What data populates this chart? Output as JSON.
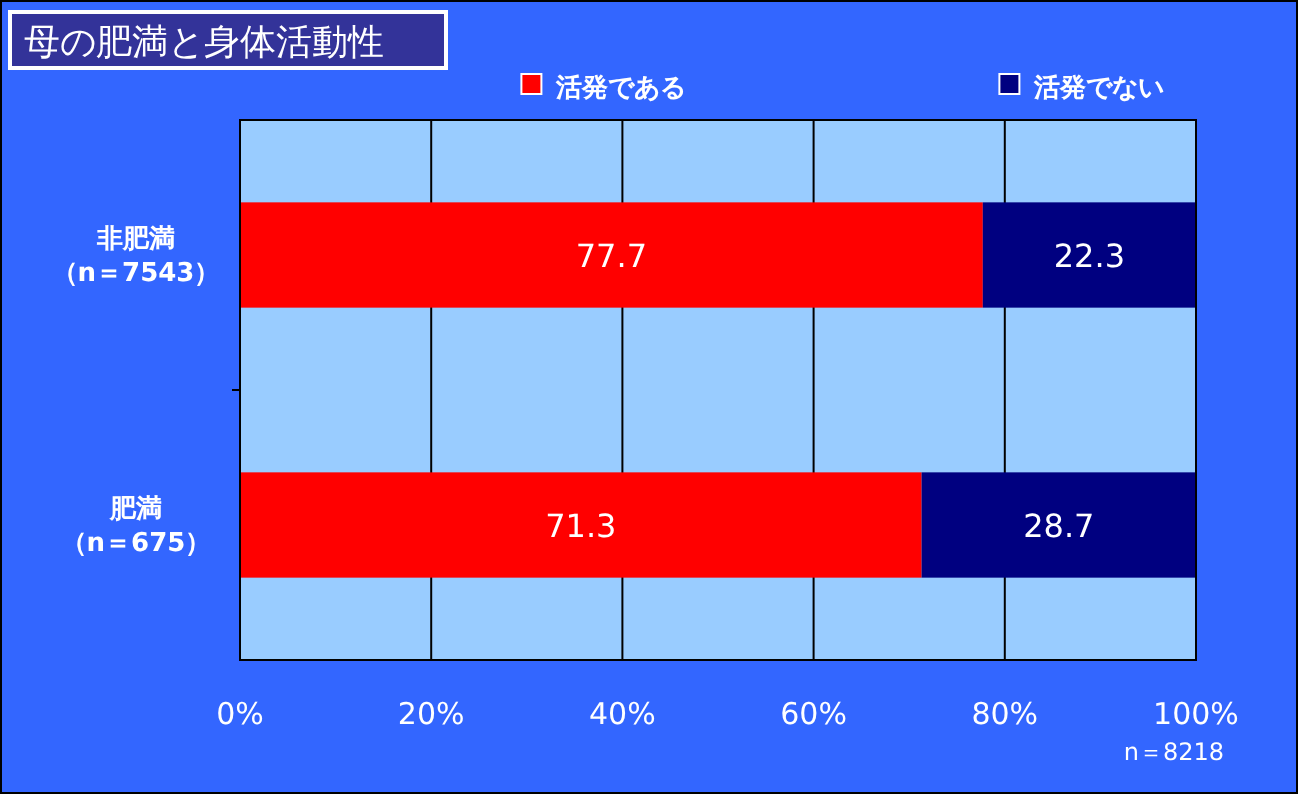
{
  "chart_data": {
    "type": "bar",
    "title": "母の肥満と身体活動性",
    "orientation": "horizontal",
    "stacked": true,
    "categories": [
      "非肥満（n＝7543）",
      "肥満（n＝675）"
    ],
    "series": [
      {
        "name": "活発である",
        "color": "#ff0000",
        "values": [
          77.7,
          71.3
        ]
      },
      {
        "name": "活発でない",
        "color": "#000080",
        "values": [
          22.3,
          28.7
        ]
      }
    ],
    "xlim": [
      0,
      100
    ],
    "xticks": [
      {
        "value": 0,
        "label": "0%"
      },
      {
        "value": 20,
        "label": "20%"
      },
      {
        "value": 40,
        "label": "40%"
      },
      {
        "value": 60,
        "label": "60%"
      },
      {
        "value": 80,
        "label": "80%"
      },
      {
        "value": 100,
        "label": "100%"
      }
    ],
    "grid": "x",
    "legend": "top",
    "data_labels": true,
    "annotations": [
      "n＝8218"
    ]
  }
}
